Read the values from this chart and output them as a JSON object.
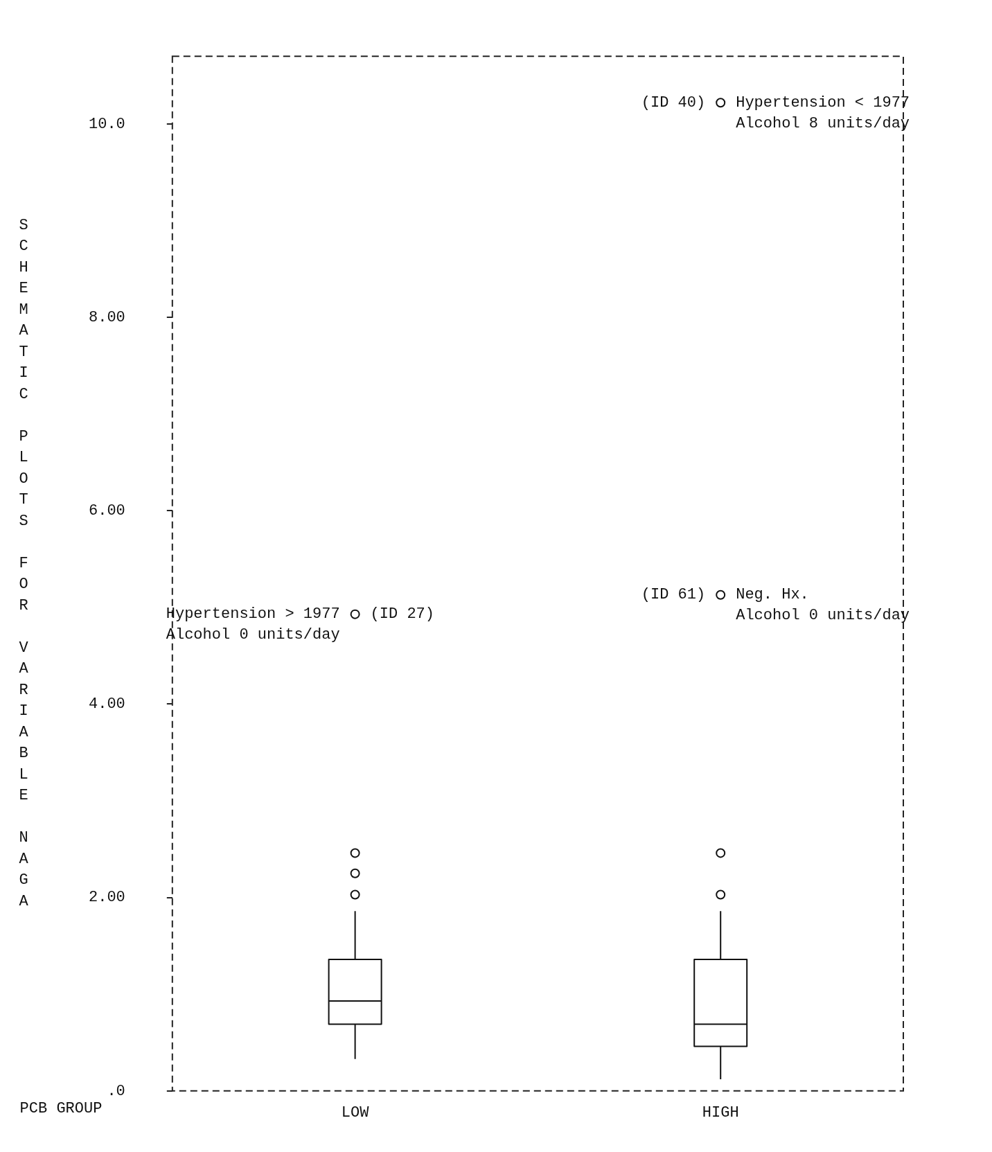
{
  "chart_data": {
    "type": "box",
    "xlabel": "PCB GROUP",
    "ylabel": "SCHEMATIC PLOTS FOR VARIABLE NAGA",
    "categories": [
      "LOW",
      "HIGH"
    ],
    "boxes": [
      {
        "low": 0.33,
        "q1": 0.69,
        "median": 0.93,
        "q3": 1.36,
        "high": 1.86,
        "outliers": [
          2.03,
          2.25,
          2.46,
          4.93
        ]
      },
      {
        "low": 0.12,
        "q1": 0.46,
        "median": 0.69,
        "q3": 1.36,
        "high": 1.86,
        "outliers": [
          2.03,
          2.46,
          5.13,
          10.22
        ]
      }
    ],
    "ylim": [
      0,
      10.7
    ],
    "yticks": [
      {
        "value": 0,
        "label": ".0"
      },
      {
        "value": 2,
        "label": "2.00"
      },
      {
        "value": 4,
        "label": "4.00"
      },
      {
        "value": 6,
        "label": "6.00"
      },
      {
        "value": 8,
        "label": "8.00"
      },
      {
        "value": 10,
        "label": "10.0"
      }
    ],
    "grid": false,
    "annotations": [
      "(ID 40)",
      "Hypertension < 1977\nAlcohol 8 units/day",
      "(ID 27)",
      "Hypertension > 1977\nAlcohol 0 units/day",
      "(ID 61)",
      "Neg. Hx.\nAlcohol 0 units/day"
    ]
  }
}
